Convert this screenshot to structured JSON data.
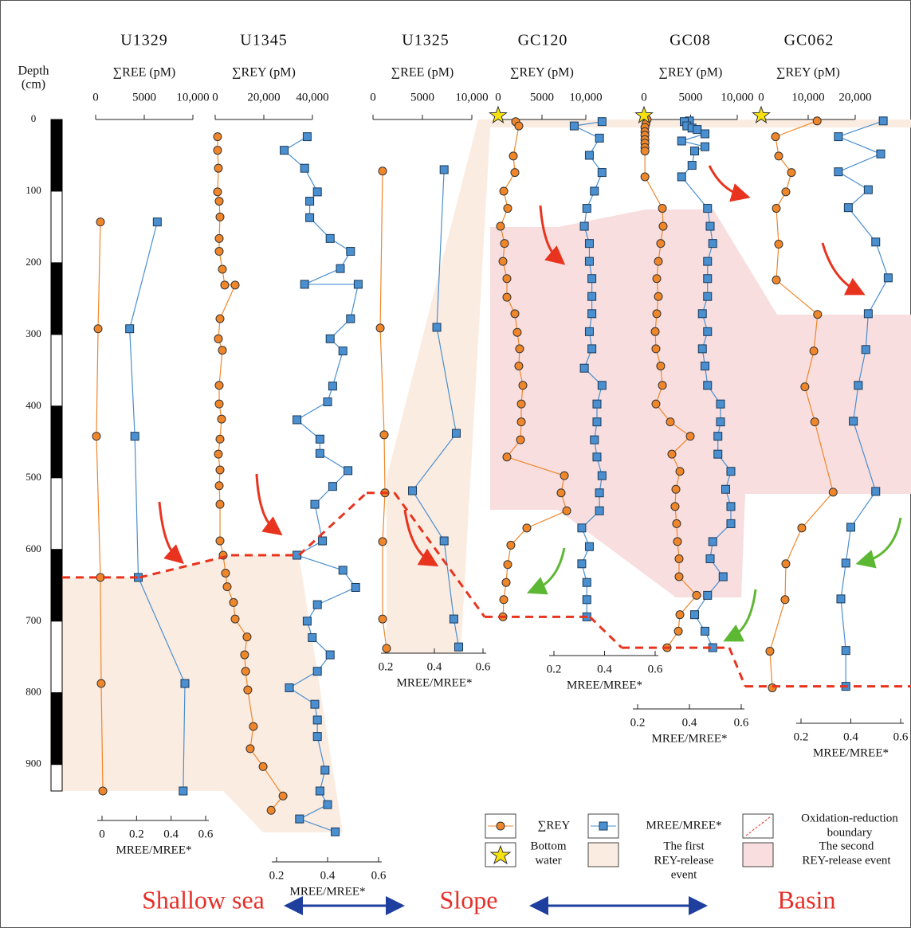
{
  "chart_data": [
    {
      "type": "line",
      "title": "U1329",
      "top_axis": {
        "label": "∑REE (pM)",
        "xlim": [
          0,
          10000
        ],
        "xticks": [
          0,
          5000,
          {
            "value": 10000,
            "label": "10,000"
          }
        ]
      },
      "bottom_axis": {
        "label": "MREE/MREE*",
        "xlim": [
          0,
          0.6
        ],
        "xticks": [
          0,
          0.2,
          0.4,
          0.6
        ]
      },
      "rey": {
        "color": "#f0862a",
        "depth": [
          143,
          292,
          442,
          639,
          787,
          937
        ],
        "values": [
          490,
          250,
          80,
          490,
          570,
          740
        ]
      },
      "mree": {
        "color": "#4a8fd0",
        "depth": [
          143,
          292,
          442,
          639,
          787,
          937
        ],
        "values": [
          0.32,
          0.16,
          0.19,
          0.21,
          0.48,
          0.47
        ]
      },
      "redox_boundary": 639
    },
    {
      "type": "line",
      "title": "U1345",
      "top_axis": {
        "label": "∑REY (pM)",
        "xlim": [
          0,
          40000
        ],
        "xticks": [
          0,
          {
            "value": 20000,
            "label": "20,000"
          },
          {
            "value": 40000,
            "label": "40,000"
          }
        ]
      },
      "bottom_axis": {
        "label": "MREE/MREE*",
        "xlim": [
          0.2,
          0.6
        ],
        "xticks": [
          0.2,
          0.4,
          0.6
        ]
      },
      "rey": {
        "color": "#f0862a",
        "depth": [
          24,
          43,
          68,
          101,
          114,
          136,
          166,
          184,
          209,
          231,
          231,
          278,
          306,
          322,
          371,
          397,
          418,
          446,
          467,
          489,
          511,
          537,
          588,
          608,
          633,
          652,
          674,
          697,
          722,
          747,
          770,
          796,
          847,
          878,
          903,
          944,
          964
        ],
        "values": [
          980,
          980,
          1310,
          980,
          1640,
          1970,
          1640,
          1640,
          2950,
          3930,
          8200,
          1970,
          1310,
          2950,
          1640,
          1640,
          2620,
          1970,
          1310,
          1970,
          1640,
          1970,
          1970,
          3280,
          4260,
          4920,
          7540,
          8200,
          13100,
          12100,
          12500,
          13400,
          15700,
          14400,
          19700,
          27900,
          23000
        ]
      },
      "mree": {
        "color": "#4a8fd0",
        "depth": [
          24,
          43,
          68,
          101,
          114,
          137,
          166,
          184,
          208,
          230,
          230,
          278,
          306,
          323,
          372,
          394,
          419,
          446,
          466,
          490,
          512,
          537,
          588,
          608,
          629,
          653,
          677,
          700,
          723,
          747,
          770,
          793,
          816,
          838,
          861,
          908,
          937,
          956,
          976,
          994
        ],
        "values": [
          0.32,
          0.23,
          0.31,
          0.36,
          0.33,
          0.33,
          0.41,
          0.49,
          0.45,
          0.31,
          0.52,
          0.49,
          0.41,
          0.46,
          0.42,
          0.4,
          0.28,
          0.37,
          0.37,
          0.48,
          0.42,
          0.35,
          0.38,
          0.28,
          0.46,
          0.51,
          0.36,
          0.32,
          0.34,
          0.41,
          0.36,
          0.25,
          0.35,
          0.36,
          0.36,
          0.39,
          0.37,
          0.4,
          0.29,
          0.43
        ]
      },
      "redox_boundary": 608
    },
    {
      "type": "line",
      "title": "U1325",
      "top_axis": {
        "label": "∑REE (pM)",
        "xlim": [
          0,
          10000
        ],
        "xticks": [
          0,
          5000,
          {
            "value": 10000,
            "label": "10,000"
          }
        ]
      },
      "bottom_axis": {
        "label": "MREE/MREE*",
        "xlim": [
          0.2,
          0.6
        ],
        "xticks": [
          0.2,
          0.4,
          0.6
        ]
      },
      "rey": {
        "color": "#f0862a",
        "depth": [
          72,
          291,
          440,
          521,
          589,
          697,
          738
        ],
        "values": [
          970,
          730,
          1130,
          1210,
          970,
          970,
          1370
        ]
      },
      "mree": {
        "color": "#4a8fd0",
        "depth": [
          70,
          290,
          438,
          518,
          588,
          697,
          736
        ],
        "values": [
          0.44,
          0.41,
          0.49,
          0.31,
          0.44,
          0.48,
          0.5
        ]
      },
      "redox_boundary": 521
    },
    {
      "type": "line",
      "title": "GC120",
      "top_axis": {
        "label": "∑REY (pM)",
        "xlim": [
          0,
          10000
        ],
        "xticks": [
          0,
          5000,
          {
            "value": 10000,
            "label": "10,000"
          }
        ]
      },
      "bottom_axis": {
        "label": "MREE/MREE*",
        "xlim": [
          0.2,
          0.6
        ],
        "xticks": [
          0.2,
          0.4,
          0.6
        ]
      },
      "bottom_water": 0,
      "rey": {
        "color": "#f0862a",
        "depth": [
          3,
          9,
          51,
          74,
          100,
          124,
          149,
          173,
          198,
          222,
          248,
          271,
          297,
          320,
          344,
          371,
          397,
          422,
          447,
          471,
          497,
          521,
          546,
          570,
          594,
          621,
          646,
          670,
          694
        ],
        "values": [
          2000,
          2360,
          1730,
          1910,
          640,
          1090,
          270,
          730,
          550,
          1000,
          1000,
          1910,
          2180,
          2450,
          2360,
          2820,
          2640,
          2640,
          2550,
          1000,
          7550,
          7180,
          7820,
          3270,
          1450,
          1090,
          910,
          640,
          550
        ]
      },
      "mree": {
        "color": "#4a8fd0",
        "depth": [
          3,
          9,
          26,
          50,
          74,
          100,
          124,
          149,
          173,
          198,
          222,
          247,
          271,
          296,
          320,
          347,
          371,
          397,
          422,
          447,
          471,
          497,
          521,
          546,
          570,
          596,
          620,
          646,
          670,
          694
        ],
        "values": [
          0.39,
          0.28,
          0.38,
          0.34,
          0.39,
          0.36,
          0.33,
          0.32,
          0.34,
          0.34,
          0.35,
          0.35,
          0.35,
          0.34,
          0.35,
          0.32,
          0.39,
          0.37,
          0.37,
          0.36,
          0.37,
          0.39,
          0.38,
          0.38,
          0.31,
          0.34,
          0.31,
          0.33,
          0.33,
          0.33
        ]
      },
      "redox_boundary": 694
    },
    {
      "type": "line",
      "title": "GC08",
      "top_axis": {
        "label": "∑REY (pM)",
        "xlim": [
          0,
          10000
        ],
        "xticks": [
          0,
          5000,
          {
            "value": 10000,
            "label": "10,000"
          }
        ]
      },
      "bottom_axis": {
        "label": "MREE/MREE*",
        "xlim": [
          0.2,
          0.6
        ],
        "xticks": [
          0.2,
          0.4,
          0.6
        ]
      },
      "bottom_water": 0,
      "rey": {
        "color": "#f0862a",
        "depth": [
          0,
          6,
          11,
          17,
          22,
          28,
          33,
          39,
          44,
          80,
          124,
          149,
          173,
          198,
          222,
          247,
          271,
          296,
          320,
          344,
          371,
          397,
          422,
          442,
          467,
          491,
          516,
          540,
          564,
          589,
          613,
          638,
          664,
          691,
          714,
          737
        ],
        "values": [
          340,
          200,
          100,
          100,
          100,
          100,
          100,
          100,
          100,
          100,
          1970,
          2050,
          1790,
          1540,
          1370,
          1540,
          1370,
          1200,
          1280,
          1790,
          1970,
          1280,
          2820,
          4960,
          2990,
          3850,
          3420,
          3330,
          3500,
          3590,
          3760,
          3760,
          5640,
          3850,
          3680,
          2480
        ]
      },
      "mree": {
        "color": "#4a8fd0",
        "depth": [
          2,
          3,
          9,
          12,
          14,
          20,
          30,
          38,
          44,
          64,
          80,
          124,
          149,
          173,
          198,
          222,
          247,
          271,
          296,
          320,
          344,
          371,
          397,
          422,
          442,
          467,
          491,
          516,
          540,
          564,
          589,
          613,
          638,
          664,
          691,
          714,
          737
        ],
        "values": [
          0.4,
          0.38,
          0.39,
          0.41,
          0.43,
          0.46,
          0.37,
          0.46,
          0.42,
          0.41,
          0.37,
          0.47,
          0.48,
          0.49,
          0.47,
          0.47,
          0.47,
          0.45,
          0.47,
          0.45,
          0.46,
          0.47,
          0.52,
          0.52,
          0.51,
          0.51,
          0.56,
          0.54,
          0.56,
          0.56,
          0.49,
          0.48,
          0.53,
          0.47,
          0.42,
          0.46,
          0.49
        ]
      },
      "redox_boundary": 737
    },
    {
      "type": "line",
      "title": "GC062",
      "top_axis": {
        "label": "∑REY (pM)",
        "xlim": [
          0,
          20000
        ],
        "xticks": [
          0,
          {
            "value": 10000,
            "label": "10,000"
          },
          {
            "value": 20000,
            "label": "20,000"
          }
        ]
      },
      "bottom_axis": {
        "label": "MREE/MREE*",
        "xlim": [
          0.2,
          0.6
        ],
        "xticks": [
          0.2,
          0.4,
          0.6
        ]
      },
      "bottom_water": 0,
      "rey": {
        "color": "#f0862a",
        "depth": [
          2,
          24,
          51,
          74,
          101,
          124,
          174,
          224,
          272,
          323,
          373,
          422,
          520,
          570,
          620,
          670,
          742,
          793
        ],
        "values": [
          11900,
          3050,
          3730,
          6440,
          5250,
          3220,
          3730,
          3220,
          12000,
          11200,
          9300,
          11400,
          15300,
          8640,
          5250,
          5080,
          1860,
          2370
        ]
      },
      "mree": {
        "color": "#4a8fd0",
        "depth": [
          2,
          24,
          48,
          73,
          98,
          123,
          171,
          221,
          271,
          321,
          371,
          421,
          519,
          569,
          619,
          669,
          741,
          791
        ],
        "values": [
          0.53,
          0.35,
          0.52,
          0.35,
          0.47,
          0.39,
          0.5,
          0.55,
          0.47,
          0.46,
          0.43,
          0.41,
          0.5,
          0.4,
          0.38,
          0.36,
          0.38,
          0.38
        ]
      },
      "redox_boundary": 791
    }
  ],
  "depth_axis": {
    "label": [
      "Depth",
      "(cm)"
    ],
    "ylim": [
      0,
      937
    ],
    "yticks": [
      0,
      100,
      200,
      300,
      400,
      500,
      600,
      700,
      800,
      900
    ]
  },
  "legend": {
    "rey": "∑REY",
    "mree": "MREE/MREE*",
    "boundary": [
      "Oxidation-reduction",
      "boundary"
    ],
    "bottom_water": [
      "Bottom",
      "water"
    ],
    "first_event": [
      "The first",
      "REY-release",
      "event"
    ],
    "second_event": [
      "The second",
      "REY-release event"
    ]
  },
  "zones": [
    "Shallow sea",
    "Slope",
    "Basin"
  ]
}
